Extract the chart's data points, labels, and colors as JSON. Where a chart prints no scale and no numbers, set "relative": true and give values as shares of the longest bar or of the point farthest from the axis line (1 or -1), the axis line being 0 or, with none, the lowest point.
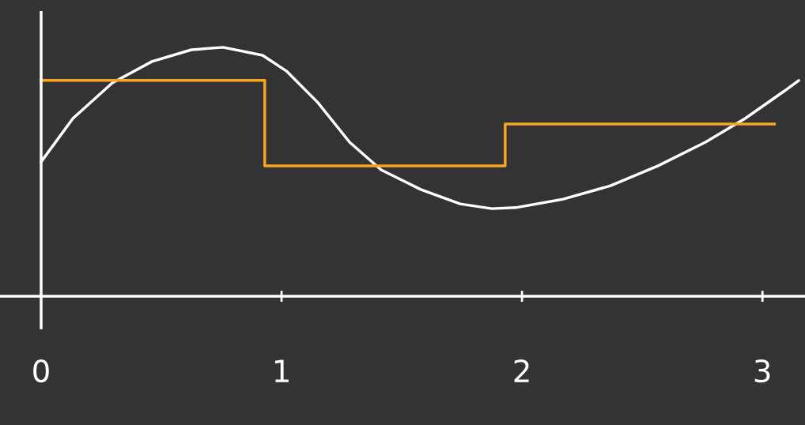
{
  "chart_data": {
    "type": "line",
    "relative": true,
    "xlim": [
      -0.171,
      3.177
    ],
    "xticks": [
      0,
      1,
      2,
      3
    ],
    "series": [
      {
        "color": "#ffffff",
        "x": [
          0,
          0.132,
          0.296,
          0.461,
          0.625,
          0.757,
          0.921,
          1.02,
          1.151,
          1.283,
          1.414,
          1.579,
          1.743,
          1.875,
          1.974,
          2.171,
          2.368,
          2.566,
          2.763,
          2.928,
          3.092,
          3.151
        ],
        "values": [
          0.54,
          0.714,
          0.857,
          0.943,
          0.99,
          1.0,
          0.968,
          0.905,
          0.778,
          0.619,
          0.508,
          0.429,
          0.371,
          0.352,
          0.356,
          0.39,
          0.444,
          0.524,
          0.619,
          0.714,
          0.825,
          0.867
        ]
      },
      {
        "type": "step",
        "color": "#f5a623",
        "x": [
          0,
          0.93,
          1.93,
          3.05
        ],
        "values": [
          0.867,
          0.524,
          0.692,
          0.692
        ]
      }
    ]
  }
}
